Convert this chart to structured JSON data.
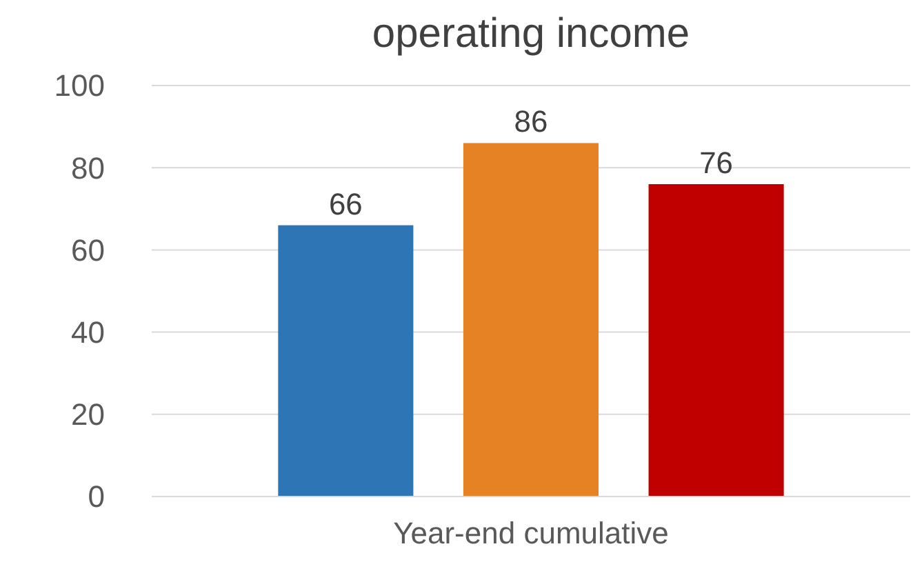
{
  "chart_data": {
    "type": "bar",
    "title": "operating income",
    "categories": [
      "Year-end cumulative"
    ],
    "series": [
      {
        "color": "#2e75b6",
        "values": [
          66
        ]
      },
      {
        "color": "#e68224",
        "values": [
          86
        ]
      },
      {
        "color": "#c00000",
        "values": [
          76
        ]
      }
    ],
    "ylim": [
      0,
      100
    ],
    "yticks": [
      0,
      20,
      40,
      60,
      80,
      100
    ],
    "grid": "y",
    "data_labels": true
  }
}
